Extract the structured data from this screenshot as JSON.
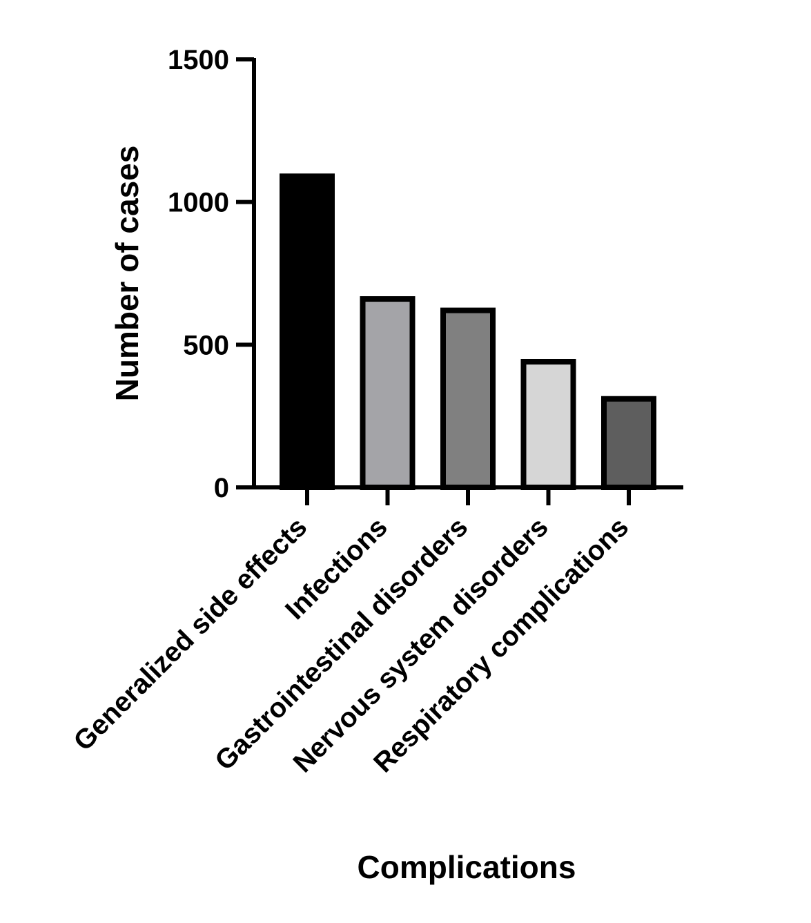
{
  "chart_data": {
    "type": "bar",
    "categories": [
      "Generalized side effects",
      "Infections",
      "Gastrointestinal disorders",
      "Nervous system disorders",
      "Respiratory complications"
    ],
    "values": [
      1100,
      670,
      630,
      450,
      320
    ],
    "bar_colors": [
      "#000000",
      "#a4a4a8",
      "#808080",
      "#d6d6d6",
      "#5e5e5e"
    ],
    "xlabel": "Complications",
    "ylabel": "Number of cases",
    "ylim": [
      0,
      1500
    ],
    "yticks": [
      0,
      500,
      1000,
      1500
    ],
    "grid": false,
    "legend": "none"
  }
}
